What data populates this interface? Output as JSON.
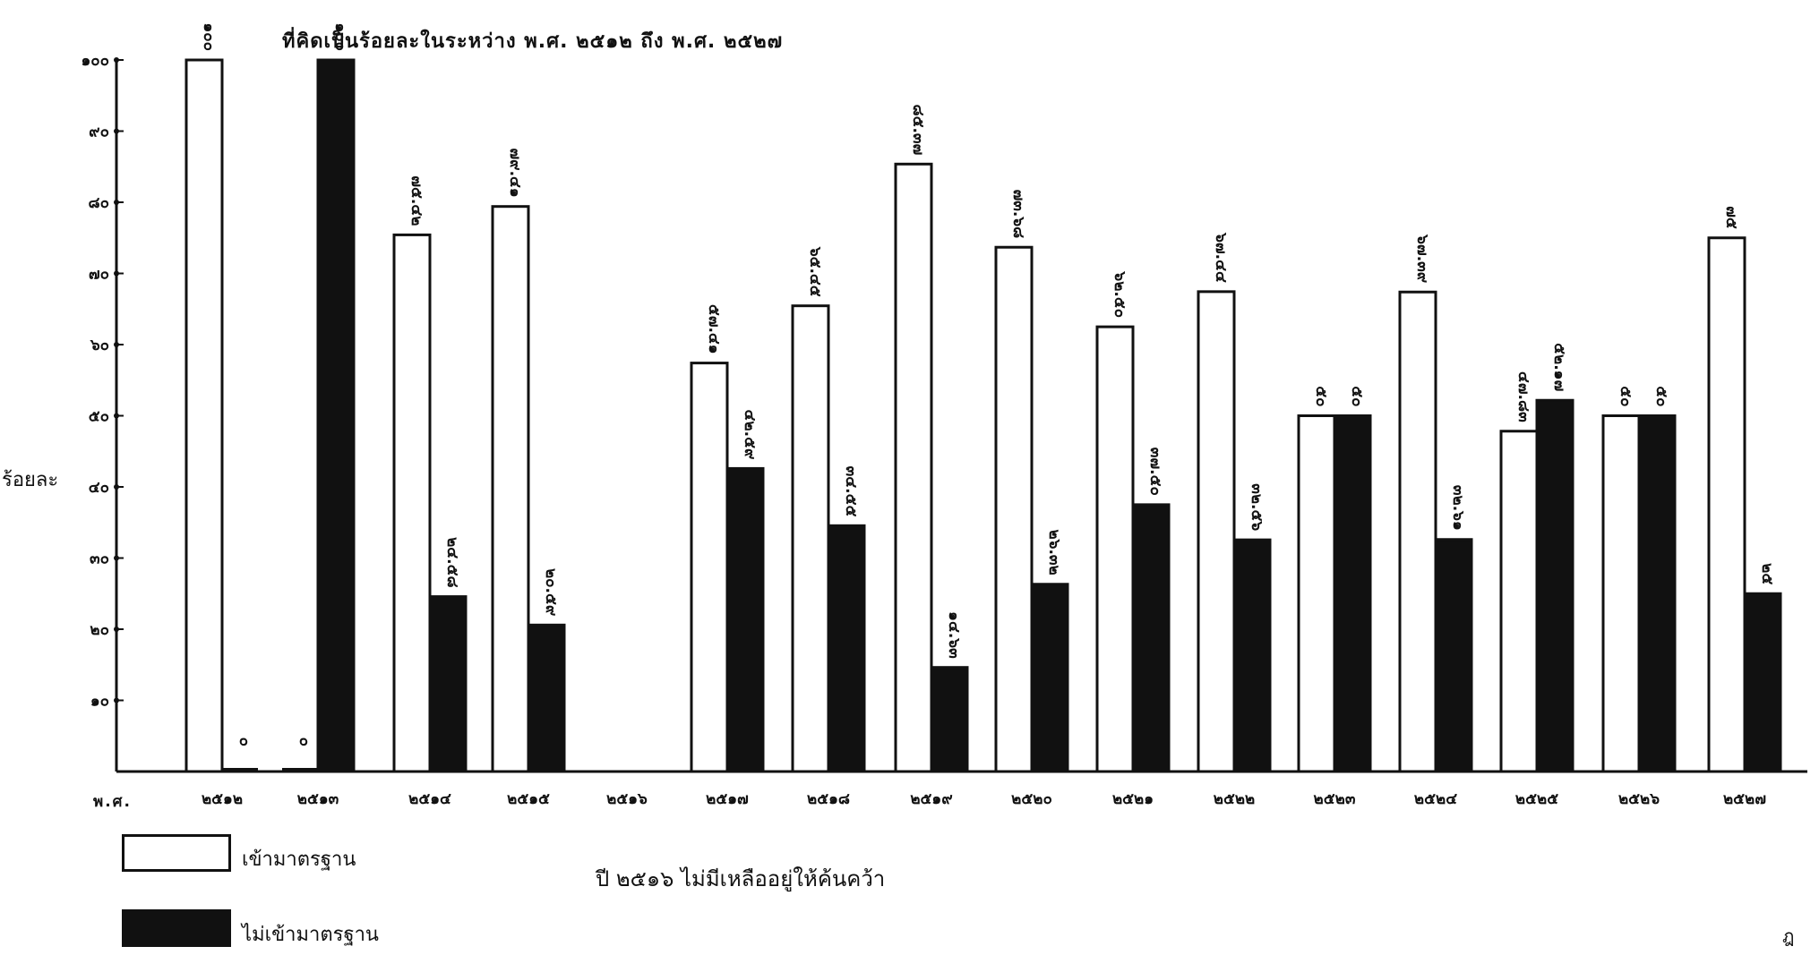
{
  "title": "ที่คิดเป็นร้อยละในระหว่าง พ.ศ. ๒๕๑๒ ถึง พ.ศ. ๒๕๒๗",
  "ylabel": "ร้อยละ",
  "x_prefix": "พ.ศ.",
  "note": "ปี ๒๕๑๖ ไม่มีเหลืออยู่ให้ค้นคว้า",
  "corner_mark": "ฎ",
  "legend": [
    {
      "label": "เข้ามาตรฐาน",
      "color": "#ffffff"
    },
    {
      "label": "ไม่เข้ามาตรฐาน",
      "color": "#111111"
    }
  ],
  "chart_data": {
    "type": "bar",
    "title": "ที่คิดเป็นร้อยละในระหว่าง พ.ศ. ๒๕๑๒ ถึง พ.ศ. ๒๕๒๗",
    "xlabel": "พ.ศ.",
    "ylabel": "ร้อยละ",
    "ylim": [
      0,
      100
    ],
    "yticks": [
      10,
      20,
      30,
      40,
      50,
      60,
      70,
      80,
      90,
      100
    ],
    "ytick_labels": [
      "๑๐",
      "๒๐",
      "๓๐",
      "๔๐",
      "๕๐",
      "๖๐",
      "๗๐",
      "๘๐",
      "๙๐",
      "๑๐๐"
    ],
    "categories": [
      "๒๕๑๒",
      "๒๕๑๓",
      "๒๕๑๔",
      "๒๕๑๕",
      "๒๕๑๖",
      "๒๕๑๗",
      "๒๕๑๘",
      "๒๕๑๙",
      "๒๕๒๐",
      "๒๕๒๑",
      "๒๕๒๒",
      "๒๕๒๓",
      "๒๕๒๔",
      "๒๕๒๕",
      "๒๕๒๖",
      "๒๕๒๗"
    ],
    "series": [
      {
        "name": "เข้ามาตรฐาน",
        "color": "#ffffff",
        "values": [
          100,
          0,
          75.42,
          79.41,
          null,
          57.41,
          65.45,
          85.37,
          73.68,
          62.5,
          67.44,
          50,
          67.39,
          47.83,
          50,
          75
        ],
        "labels": [
          "๑๐๐",
          "๐",
          "๗๕.๔๒",
          "๗๙.๔๑",
          "",
          "๕๗.๔๑",
          "๖๕.๔๕",
          "๘๕.๓๗",
          "๗๓.๖๘",
          "๖๒.๕๐",
          "๖๗.๔๔",
          "๕๐",
          "๖๗.๓๙",
          "๔๗.๘๓",
          "๕๐",
          "๗๕"
        ]
      },
      {
        "name": "ไม่เข้ามาตรฐาน",
        "color": "#111111",
        "values": [
          0,
          100,
          24.58,
          20.59,
          null,
          42.59,
          34.55,
          14.63,
          26.32,
          37.5,
          32.56,
          50,
          32.61,
          52.17,
          50,
          25
        ],
        "labels": [
          "๐",
          "๑๐๐",
          "๒๔.๕๘",
          "๒๐.๕๙",
          "",
          "๔๒.๕๙",
          "๓๔.๕๕",
          "๑๔.๖๓",
          "๒๖.๓๒",
          "๓๗.๕๐",
          "๓๒.๕๖",
          "๕๐",
          "๓๒.๖๑",
          "๕๒.๑๗",
          "๕๐",
          "๒๕"
        ]
      }
    ],
    "grid": false,
    "legend_position": "bottom-left"
  }
}
